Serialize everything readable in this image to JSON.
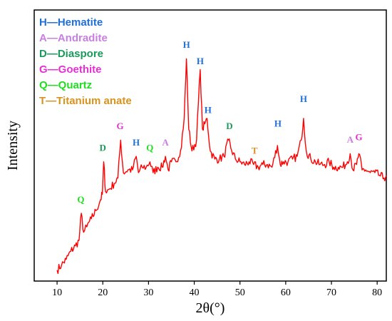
{
  "chart_data": {
    "type": "line",
    "title": "",
    "xlabel": "2θ(°)",
    "ylabel": "Intensity",
    "xlim": [
      5,
      82
    ],
    "ylim": [
      0,
      100
    ],
    "xticks": [
      10,
      20,
      30,
      40,
      50,
      60,
      70,
      80
    ],
    "yticks_shown": false,
    "grid": false,
    "legend_position": "top-left",
    "line_color": "#ff0000",
    "series": [
      {
        "values_note": "",
        "x": [
          10.0,
          11.0,
          12.0,
          13.0,
          14.0,
          14.8,
          15.3,
          15.8,
          16.5,
          17.5,
          18.5,
          19.5,
          19.9,
          20.2,
          20.6,
          21.5,
          22.5,
          23.3,
          23.9,
          24.5,
          25.5,
          26.5,
          27.3,
          27.8,
          28.6,
          29.5,
          30.3,
          31.0,
          32.0,
          33.0,
          33.7,
          34.3,
          35.0,
          36.0,
          37.0,
          37.8,
          38.3,
          38.8,
          39.5,
          40.5,
          41.3,
          41.8,
          42.3,
          42.8,
          43.5,
          44.5,
          45.5,
          46.5,
          47.5,
          48.0,
          49.0,
          50.0,
          51.0,
          52.0,
          53.0,
          54.0,
          55.0,
          56.0,
          57.0,
          58.2,
          58.8,
          59.5,
          60.5,
          61.5,
          62.5,
          63.4,
          63.9,
          64.5,
          65.5,
          66.5,
          67.5,
          68.5,
          69.5,
          70.5,
          71.5,
          72.5,
          73.5,
          74.1,
          74.7,
          75.5,
          76.0,
          76.7,
          77.5,
          78.5,
          79.5,
          80.5,
          81.5,
          82.0
        ],
        "y": [
          4,
          6,
          8,
          11,
          13,
          15,
          25,
          18,
          20,
          23,
          26,
          30,
          32,
          44,
          33,
          34,
          36,
          38,
          52,
          40,
          41,
          41,
          46,
          40,
          42,
          42,
          44,
          40,
          42,
          42,
          46,
          41,
          44,
          44,
          48,
          60,
          82,
          56,
          48,
          52,
          78,
          56,
          58,
          60,
          48,
          45,
          45,
          46,
          52,
          49,
          45,
          44,
          43,
          44,
          43,
          42,
          43,
          43,
          42,
          50,
          43,
          44,
          44,
          45,
          46,
          52,
          60,
          48,
          45,
          44,
          43,
          43,
          44,
          42,
          42,
          42,
          44,
          47,
          41,
          43,
          47,
          41,
          41,
          40,
          40,
          39,
          38,
          39
        ]
      }
    ],
    "legend": [
      {
        "text": "H—Hematite",
        "color": "#1f6fd6"
      },
      {
        "text": "A—Andradite",
        "color": "#c77fe0"
      },
      {
        "text": "D—Diaspore",
        "color": "#1a9a5a"
      },
      {
        "text": "G—Goethite",
        "color": "#e52fd3"
      },
      {
        "text": "Q—Quartz",
        "color": "#22dd22"
      },
      {
        "text": "T—Titanium anate",
        "color": "#d7931f"
      }
    ],
    "annotations": [
      {
        "text": "Q",
        "x": 15.2,
        "y": 29,
        "color": "#22dd22"
      },
      {
        "text": "D",
        "x": 20.0,
        "y": 48,
        "color": "#1a9a5a"
      },
      {
        "text": "G",
        "x": 23.8,
        "y": 56,
        "color": "#e52fd3"
      },
      {
        "text": "H",
        "x": 27.3,
        "y": 50,
        "color": "#1f6fd6"
      },
      {
        "text": "Q",
        "x": 30.3,
        "y": 48,
        "color": "#22dd22"
      },
      {
        "text": "A",
        "x": 33.7,
        "y": 50,
        "color": "#c77fe0"
      },
      {
        "text": "H",
        "x": 38.3,
        "y": 86,
        "color": "#1f6fd6"
      },
      {
        "text": "H",
        "x": 41.3,
        "y": 80,
        "color": "#1f6fd6"
      },
      {
        "text": "H",
        "x": 43.0,
        "y": 62,
        "color": "#1f6fd6"
      },
      {
        "text": "D",
        "x": 47.7,
        "y": 56,
        "color": "#1a9a5a"
      },
      {
        "text": "T",
        "x": 53.2,
        "y": 47,
        "color": "#d7931f"
      },
      {
        "text": "H",
        "x": 58.3,
        "y": 57,
        "color": "#1f6fd6"
      },
      {
        "text": "H",
        "x": 63.9,
        "y": 66,
        "color": "#1f6fd6"
      },
      {
        "text": "A",
        "x": 74.1,
        "y": 51,
        "color": "#c77fe0"
      },
      {
        "text": "G",
        "x": 76.0,
        "y": 52,
        "color": "#e52fd3"
      }
    ]
  }
}
